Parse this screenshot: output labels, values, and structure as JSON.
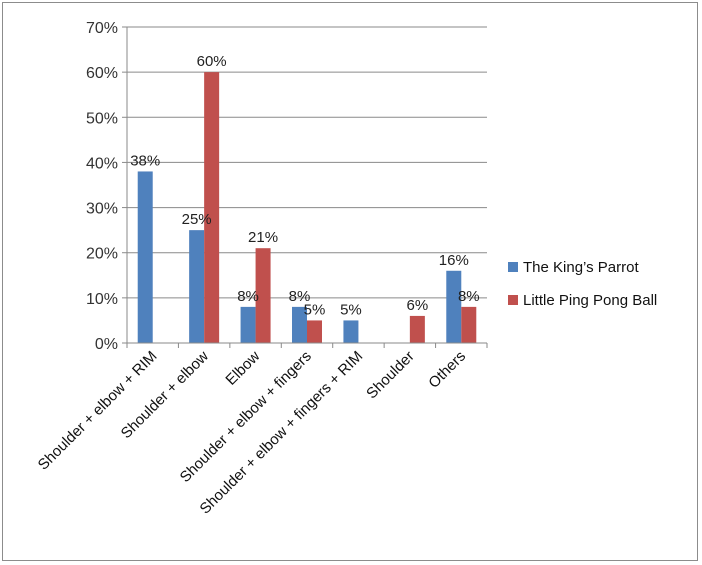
{
  "chart_data": {
    "type": "bar",
    "categories": [
      "Shoulder + elbow + RIM",
      "Shoulder + elbow",
      "Elbow",
      "Shoulder + elbow + fingers",
      "Shoulder + elbow + fingers + RIM",
      "Shoulder",
      "Others"
    ],
    "series": [
      {
        "name": "The King’s Parrot",
        "color": "#4f81bd",
        "values": [
          38,
          25,
          8,
          8,
          5,
          null,
          16
        ],
        "labels": [
          "38%",
          "25%",
          "8%",
          "8%",
          "5%",
          "",
          "16%"
        ]
      },
      {
        "name": "Little Ping Pong Ball",
        "color": "#c0504d",
        "values": [
          null,
          60,
          21,
          5,
          null,
          6,
          8
        ],
        "labels": [
          "",
          "60%",
          "21%",
          "5%",
          "",
          "6%",
          "8%"
        ]
      }
    ],
    "yticks": [
      "0%",
      "10%",
      "20%",
      "30%",
      "40%",
      "50%",
      "60%",
      "70%"
    ],
    "ylim": [
      0,
      70
    ],
    "grid": true,
    "legend": "right",
    "title": "",
    "xlabel": "",
    "ylabel": ""
  }
}
